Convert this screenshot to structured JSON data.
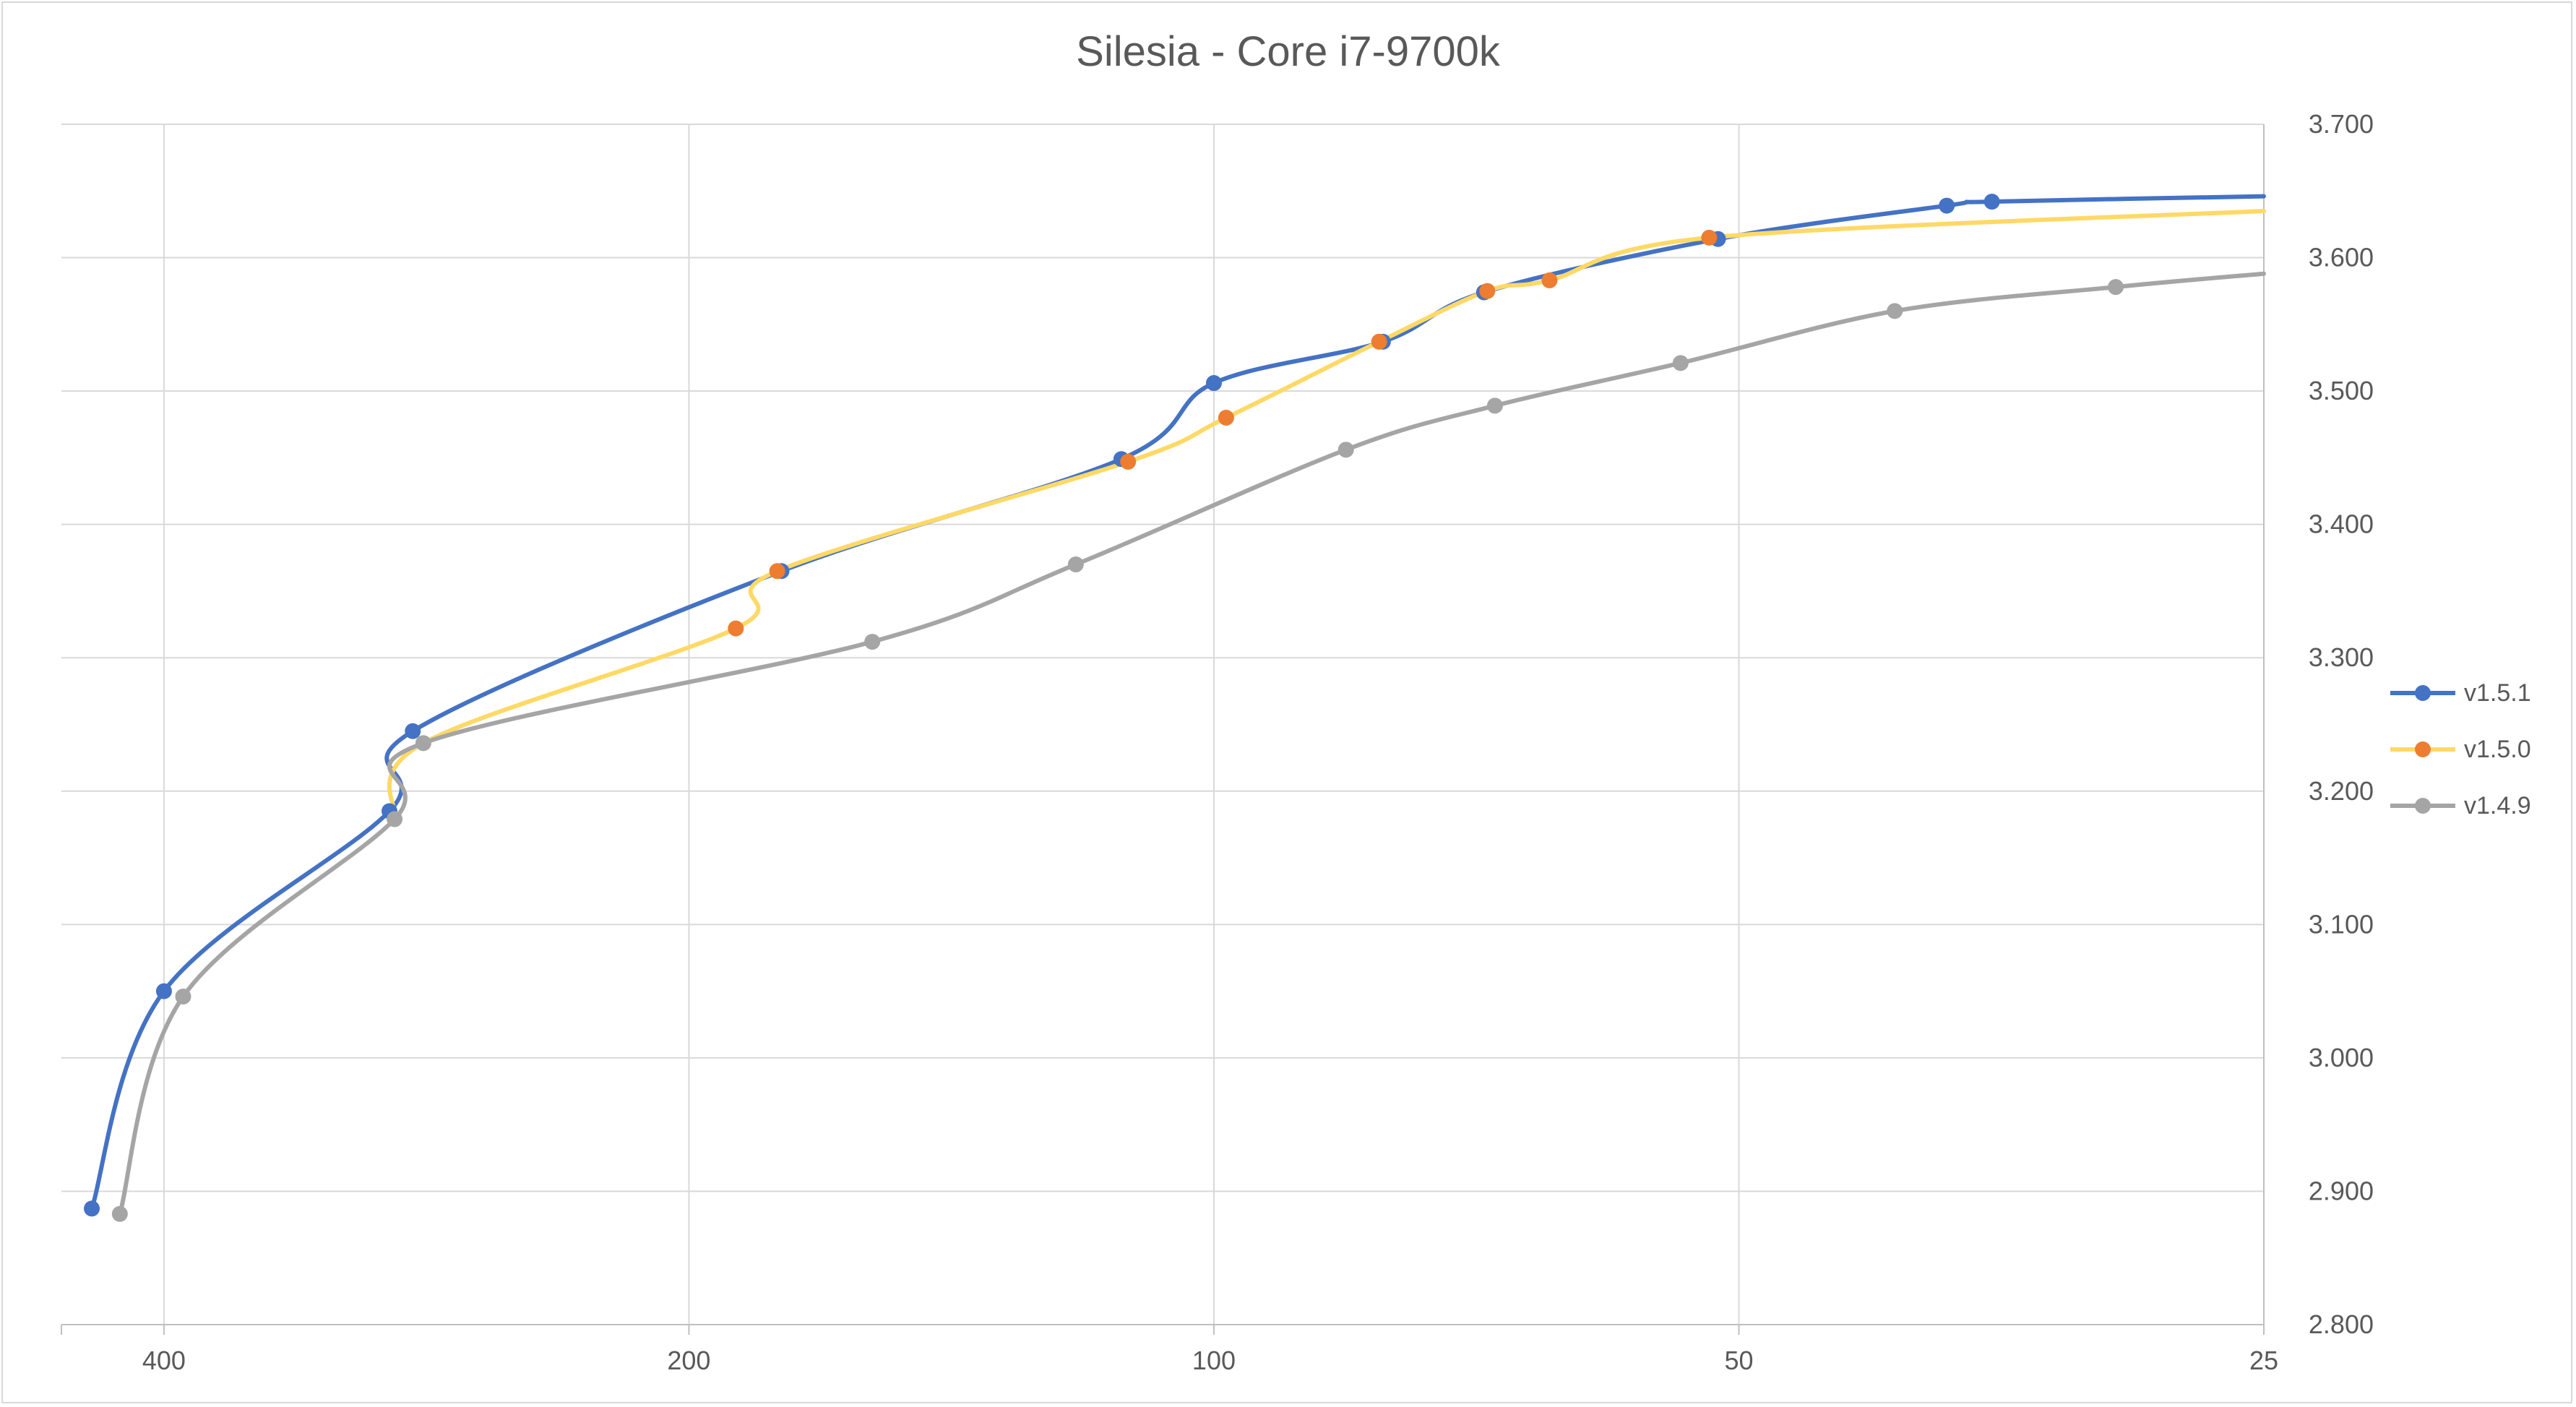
{
  "chart_data": {
    "type": "line",
    "title": "Silesia - Core i7-9700k",
    "xlabel": "",
    "ylabel": "",
    "x_axis": {
      "reversed": true,
      "xlim": [
        458,
        25
      ],
      "ticks": [
        400,
        200,
        100,
        50,
        25
      ],
      "tick_labels": [
        "400",
        "200",
        "100",
        "50",
        "25"
      ]
    },
    "y_axis": {
      "position": "right",
      "ylim": [
        2.8,
        3.7
      ],
      "ticks": [
        2.8,
        2.9,
        3.0,
        3.1,
        3.2,
        3.3,
        3.4,
        3.5,
        3.6,
        3.7
      ],
      "tick_labels": [
        "2.800",
        "2.900",
        "3.000",
        "3.100",
        "3.200",
        "3.300",
        "3.400",
        "3.500",
        "3.600",
        "3.700"
      ]
    },
    "grid": true,
    "legend_position": "right",
    "series": [
      {
        "name": "v1.5.1",
        "line_color": "#4472c4",
        "marker_color": "#4472c4",
        "x": [
          440,
          400,
          297,
          288,
          177,
          113,
          100,
          80,
          70,
          51.4,
          38,
          35.8
        ],
        "y": [
          2.887,
          3.05,
          3.185,
          3.245,
          3.365,
          3.449,
          3.506,
          3.537,
          3.574,
          3.614,
          3.639,
          3.642
        ],
        "end_value": 3.646
      },
      {
        "name": "v1.5.0",
        "line_color": "#ffd966",
        "marker_color": "#ed7d31",
        "x": [
          188,
          178,
          112,
          98.4,
          80.4,
          69.7,
          64.2,
          52
        ],
        "y": [
          3.322,
          3.365,
          3.447,
          3.48,
          3.537,
          3.575,
          3.583,
          3.615
        ],
        "start_x": 295,
        "start_y": 3.18,
        "bridge_x": 284,
        "bridge_y": 3.236,
        "end_value": 3.635
      },
      {
        "name": "v1.4.9",
        "line_color": "#a5a5a5",
        "marker_color": "#a5a5a5",
        "x": [
          424,
          390,
          295,
          284,
          157,
          120,
          84,
          69,
          54,
          40.7,
          30.4
        ],
        "y": [
          2.883,
          3.046,
          3.179,
          3.236,
          3.312,
          3.37,
          3.456,
          3.489,
          3.521,
          3.56,
          3.578
        ],
        "end_value": 3.588
      }
    ]
  }
}
